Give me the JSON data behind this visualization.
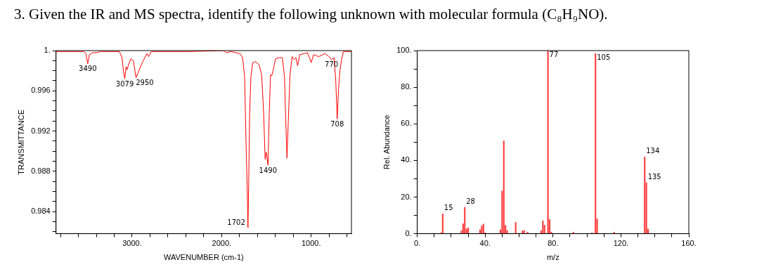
{
  "chart_data": [
    {
      "type": "line",
      "title": "3.  Given the IR and MS spectra, identify the following unknown with molecular formula (C₈H₉NO).",
      "xlabel": "WAVENUMBER (cm-1)",
      "ylabel": "TRANSMITTANCE",
      "color": "#ff0000",
      "grid": false,
      "legend": false,
      "marker": "none",
      "x": [
        3850,
        3539,
        3516,
        3496,
        3477,
        3440,
        3397,
        3355,
        3142,
        3113,
        3096,
        3082,
        3068,
        3057,
        3040,
        3014,
        2986,
        2957,
        2929,
        2887,
        2835,
        2816,
        2787,
        2376,
        1979,
        1950,
        1894,
        1794,
        1766,
        1743,
        1729,
        1715,
        1706,
        1698,
        1687,
        1673,
        1652,
        1624,
        1582,
        1553,
        1531,
        1514,
        1502,
        1482,
        1468,
        1454,
        1440,
        1426,
        1397,
        1355,
        1321,
        1298,
        1284,
        1270,
        1255,
        1236,
        1213,
        1190,
        1170,
        1151,
        1128,
        1071,
        1043,
        1014,
        1000,
        972,
        916,
        844,
        801,
        773,
        745,
        726,
        709,
        694,
        680,
        660,
        640,
        552
      ],
      "values": [
        0.9999,
        0.9999,
        0.9997,
        0.9987,
        0.9996,
        0.9998,
        0.9998,
        0.9999,
        0.9999,
        0.9993,
        0.9979,
        0.9972,
        0.9984,
        0.9981,
        0.9986,
        0.9992,
        0.999,
        0.9973,
        0.9979,
        0.9988,
        0.9997,
        0.9994,
        0.9999,
        0.9999,
        1.0,
        0.9998,
        0.9999,
        0.9997,
        0.9993,
        0.9974,
        0.9914,
        0.9866,
        0.9824,
        0.9866,
        0.9938,
        0.9974,
        0.9988,
        0.9989,
        0.9986,
        0.9976,
        0.9938,
        0.9892,
        0.9899,
        0.9886,
        0.9938,
        0.9976,
        0.9975,
        0.998,
        0.9992,
        0.9993,
        0.9993,
        0.9974,
        0.9931,
        0.9893,
        0.9931,
        0.9976,
        0.9994,
        0.9991,
        0.9993,
        0.9985,
        0.9996,
        0.9997,
        0.9998,
        0.9992,
        0.9988,
        0.9996,
        0.9994,
        0.9997,
        0.9994,
        0.9991,
        0.9993,
        0.9972,
        0.9932,
        0.9962,
        0.9979,
        0.9991,
        0.9999,
        0.9999
      ],
      "xlim": [
        3850,
        550
      ],
      "xticks": [
        {
          "value": 3800,
          "label": null
        },
        {
          "value": 3600,
          "label": null
        },
        {
          "value": 3400,
          "label": null
        },
        {
          "value": 3200,
          "label": null
        },
        {
          "value": 3000,
          "label": "3000."
        },
        {
          "value": 2800,
          "label": null
        },
        {
          "value": 2600,
          "label": null
        },
        {
          "value": 2400,
          "label": null
        },
        {
          "value": 2200,
          "label": null
        },
        {
          "value": 2000,
          "label": "2000."
        },
        {
          "value": 1800,
          "label": null
        },
        {
          "value": 1600,
          "label": null
        },
        {
          "value": 1400,
          "label": null
        },
        {
          "value": 1200,
          "label": null
        },
        {
          "value": 1000,
          "label": "1000."
        },
        {
          "value": 800,
          "label": null
        },
        {
          "value": 600,
          "label": null
        }
      ],
      "ylim": [
        0.9818,
        1.0
      ],
      "yticks": [
        {
          "value": 0.982,
          "label": null
        },
        {
          "value": 0.983,
          "label": null
        },
        0.984,
        {
          "value": 0.985,
          "label": null
        },
        {
          "value": 0.986,
          "label": null
        },
        {
          "value": 0.987,
          "label": null
        },
        0.988,
        {
          "value": 0.989,
          "label": null
        },
        {
          "value": 0.99,
          "label": null
        },
        {
          "value": 0.991,
          "label": null
        },
        0.992,
        {
          "value": 0.993,
          "label": null
        },
        {
          "value": 0.994,
          "label": null
        },
        {
          "value": 0.995,
          "label": null
        },
        0.996,
        {
          "value": 0.997,
          "label": null
        },
        {
          "value": 0.998,
          "label": null
        },
        {
          "value": 0.999,
          "label": null
        },
        {
          "value": 1,
          "label": "1."
        }
      ],
      "annotations": [
        {
          "text": "3490",
          "x": 3496,
          "y": 0.9987
        },
        {
          "text": "3079",
          "x": 3082,
          "y": 0.9972
        },
        {
          "text": "2950",
          "x": 2957,
          "y": 0.9973
        },
        {
          "text": "1702",
          "x": 1706,
          "y": 0.9824
        },
        {
          "text": "1490",
          "x": 1482,
          "y": 0.9886
        },
        {
          "text": "770",
          "x": 773,
          "y": 0.9991
        },
        {
          "text": "708",
          "x": 709,
          "y": 0.9932
        }
      ]
    },
    {
      "type": "bar",
      "xlabel": "m/z",
      "ylabel": "Rel. Abundance",
      "color": "#ff4040",
      "grid": false,
      "legend": false,
      "x": [
        14,
        15,
        26,
        27,
        28,
        29,
        30,
        37,
        38,
        39,
        40,
        49,
        50,
        51,
        52,
        53,
        58,
        62,
        63,
        65,
        73,
        74,
        75,
        77,
        78,
        79,
        92,
        103,
        105,
        106,
        116,
        134,
        135,
        136
      ],
      "values": [
        0.5,
        10.8,
        1.5,
        5.4,
        14.4,
        2.6,
        3.2,
        2.1,
        4.2,
        5.3,
        0.5,
        2.1,
        23.3,
        50.7,
        4.5,
        1.7,
        6.1,
        1.5,
        1.7,
        0.9,
        1.5,
        7.0,
        4.6,
        100,
        7.7,
        0.9,
        0.9,
        0.5,
        98.4,
        8.1,
        0.9,
        41.8,
        27.8,
        2.5
      ],
      "xlim": [
        0,
        160
      ],
      "xticks": [
        {
          "value": 0,
          "label": "0."
        },
        {
          "value": 10,
          "label": null
        },
        {
          "value": 20,
          "label": null
        },
        {
          "value": 30,
          "label": null
        },
        {
          "value": 40,
          "label": "40."
        },
        {
          "value": 50,
          "label": null
        },
        {
          "value": 60,
          "label": null
        },
        {
          "value": 70,
          "label": null
        },
        {
          "value": 80,
          "label": "80."
        },
        {
          "value": 90,
          "label": null
        },
        {
          "value": 100,
          "label": null
        },
        {
          "value": 110,
          "label": null
        },
        {
          "value": 120,
          "label": "120."
        },
        {
          "value": 130,
          "label": null
        },
        {
          "value": 140,
          "label": null
        },
        {
          "value": 150,
          "label": null
        },
        {
          "value": 160,
          "label": "160."
        }
      ],
      "ylim": [
        0,
        100
      ],
      "yticks": [
        {
          "value": 0,
          "label": "0."
        },
        {
          "value": 10,
          "label": null
        },
        {
          "value": 20,
          "label": "20."
        },
        {
          "value": 30,
          "label": null
        },
        {
          "value": 40,
          "label": "40."
        },
        {
          "value": 50,
          "label": null
        },
        {
          "value": 60,
          "label": "60."
        },
        {
          "value": 70,
          "label": null
        },
        {
          "value": 80,
          "label": "80."
        },
        {
          "value": 90,
          "label": null
        },
        {
          "value": 100,
          "label": "100."
        }
      ],
      "annotations": [
        {
          "text": "15",
          "x": 15,
          "y": 10.8
        },
        {
          "text": "28",
          "x": 28,
          "y": 14.4
        },
        {
          "text": "77",
          "x": 77,
          "y": 100
        },
        {
          "text": "105",
          "x": 105,
          "y": 98.4
        },
        {
          "text": "134",
          "x": 134,
          "y": 41.8
        },
        {
          "text": "135",
          "x": 135,
          "y": 27.8
        }
      ]
    }
  ]
}
